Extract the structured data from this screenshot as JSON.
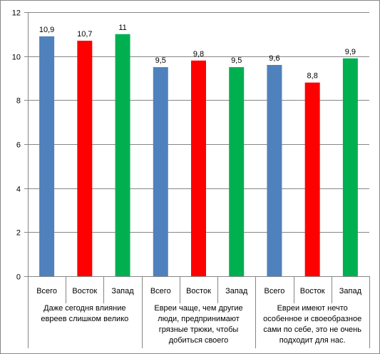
{
  "chart_data": {
    "type": "bar",
    "title": "",
    "xlabel": "",
    "ylabel": "",
    "ylim": [
      0,
      12
    ],
    "ytick_step": 2,
    "grid": true,
    "legend": "none",
    "groups": [
      {
        "label": "Даже сегодня влияние евреев слишком велико",
        "label_lines": [
          "Даже сегодня влияние",
          "евреев слишком велико"
        ],
        "bars": [
          {
            "category": "Всего",
            "value": 10.9,
            "label": "10,9",
            "color": "#4F81BD"
          },
          {
            "category": "Восток",
            "value": 10.7,
            "label": "10,7",
            "color": "#FF0000"
          },
          {
            "category": "Запад",
            "value": 11,
            "label": "11",
            "color": "#00B050"
          }
        ]
      },
      {
        "label": "Евреи чаще, чем другие люди, предпринимают грязные трюки, чтобы добиться своего",
        "label_lines": [
          "Евреи чаще, чем другие",
          "люди, предпринимают",
          "грязные трюки, чтобы",
          "добиться своего"
        ],
        "bars": [
          {
            "category": "Всего",
            "value": 9.5,
            "label": "9,5",
            "color": "#4F81BD"
          },
          {
            "category": "Восток",
            "value": 9.8,
            "label": "9,8",
            "color": "#FF0000"
          },
          {
            "category": "Запад",
            "value": 9.5,
            "label": "9,5",
            "color": "#00B050"
          }
        ]
      },
      {
        "label": "Евреи имеют нечто особенное и своеобразное сами по себе, это не очень подходит для нас.",
        "label_lines": [
          "Евреи имеют нечто",
          "особенное и своеобразное",
          "сами по себе, это не очень",
          "подходит для нас."
        ],
        "bars": [
          {
            "category": "Всего",
            "value": 9.6,
            "label": "9,6",
            "color": "#4F81BD"
          },
          {
            "category": "Восток",
            "value": 8.8,
            "label": "8,8",
            "color": "#FF0000"
          },
          {
            "category": "Запад",
            "value": 9.9,
            "label": "9,9",
            "color": "#00B050"
          }
        ]
      }
    ]
  }
}
